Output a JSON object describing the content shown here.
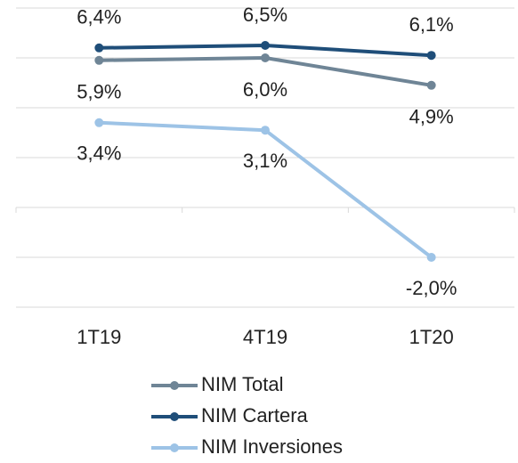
{
  "chart_data": {
    "type": "line",
    "categories": [
      "1T19",
      "4T19",
      "1T20"
    ],
    "series": [
      {
        "name": "NIM Total",
        "color": "#6f8596",
        "values": [
          5.9,
          6.0,
          4.9
        ],
        "value_labels": [
          "5,9%",
          "6,0%",
          "4,9%"
        ]
      },
      {
        "name": "NIM Cartera",
        "color": "#1f4e79",
        "values": [
          6.4,
          6.5,
          6.1
        ],
        "value_labels": [
          "6,4%",
          "6,5%",
          "6,1%"
        ]
      },
      {
        "name": "NIM Inversiones",
        "color": "#9dc3e6",
        "values": [
          3.4,
          3.1,
          -2.0
        ],
        "value_labels": [
          "3,4%",
          "3,1%",
          "-2,0%"
        ]
      }
    ],
    "ylim": [
      -4,
      8
    ],
    "yticks": [
      -4,
      -2,
      0,
      2,
      4,
      6,
      8
    ],
    "grid": true
  }
}
